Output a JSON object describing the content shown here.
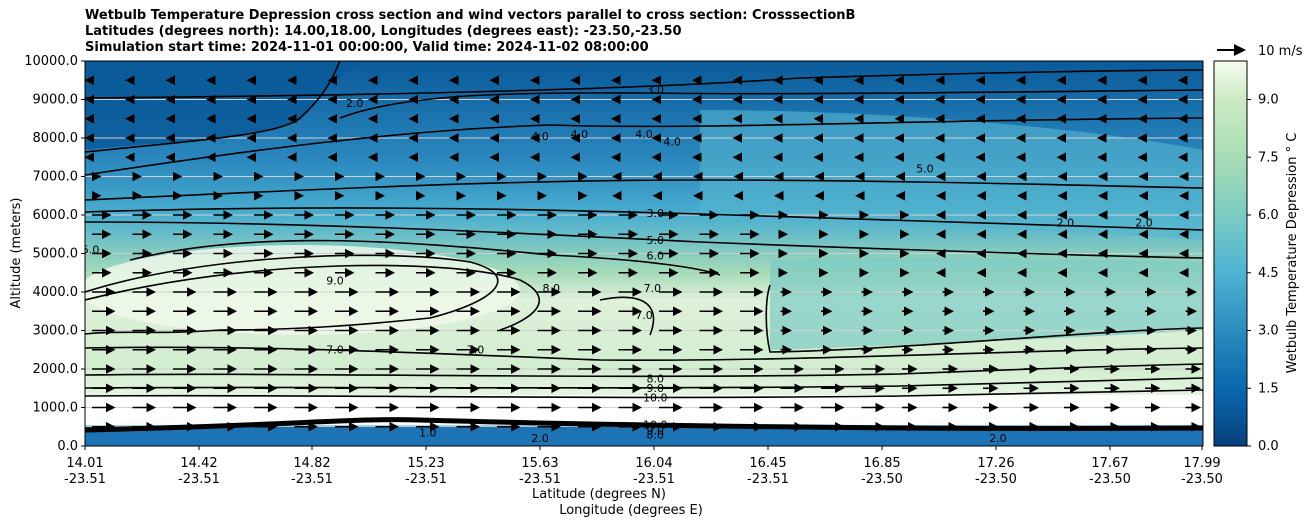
{
  "chart_data": {
    "type": "contour",
    "title_lines": [
      "Wetbulb Temperature Depression cross section and wind vectors parallel to cross section: CrosssectionB",
      "Latitudes (degrees north): 14.00,18.00, Longitudes (degrees east): -23.50,-23.50",
      "Simulation start time: 2024-11-01 00:00:00, Valid time: 2024-11-02 08:00:00"
    ],
    "ylabel": "Altitude (meters)",
    "xlabel_lat": "Latitude (degrees N)",
    "xlabel_lon": "Longitude (degrees E)",
    "ylim": [
      0,
      10000
    ],
    "y_ticks": [
      "0.0",
      "1000.0",
      "2000.0",
      "3000.0",
      "4000.0",
      "5000.0",
      "6000.0",
      "7000.0",
      "8000.0",
      "9000.0",
      "10000.0"
    ],
    "x_ticks": [
      {
        "lat": "14.01",
        "lon": "-23.51"
      },
      {
        "lat": "14.42",
        "lon": "-23.51"
      },
      {
        "lat": "14.82",
        "lon": "-23.51"
      },
      {
        "lat": "15.23",
        "lon": "-23.51"
      },
      {
        "lat": "15.63",
        "lon": "-23.51"
      },
      {
        "lat": "16.04",
        "lon": "-23.51"
      },
      {
        "lat": "16.45",
        "lon": "-23.51"
      },
      {
        "lat": "16.85",
        "lon": "-23.50"
      },
      {
        "lat": "17.26",
        "lon": "-23.50"
      },
      {
        "lat": "17.67",
        "lon": "-23.50"
      },
      {
        "lat": "17.99",
        "lon": "-23.50"
      }
    ],
    "colorbar": {
      "label": "Wetbulb Temperature Depression ° C",
      "min": 0,
      "max": 10,
      "ticks": [
        "0.0",
        "1.5",
        "3.0",
        "4.5",
        "6.0",
        "7.5",
        "9.0"
      ]
    },
    "quiver_key": {
      "label": "10 m/s"
    },
    "contour_labels": [
      {
        "text": "3.0",
        "lat": 16.04,
        "alt": 9150
      },
      {
        "text": "2.0",
        "lat": 14.97,
        "alt": 8800
      },
      {
        "text": "4.0",
        "lat": 15.63,
        "alt": 7950
      },
      {
        "text": "4.0",
        "lat": 15.77,
        "alt": 8000
      },
      {
        "text": "4.0",
        "lat": 16.0,
        "alt": 8000
      },
      {
        "text": "4.0",
        "lat": 16.1,
        "alt": 7800
      },
      {
        "text": "5.0",
        "lat": 17.0,
        "alt": 7100
      },
      {
        "text": "3.0",
        "lat": 16.04,
        "alt": 5950
      },
      {
        "text": "2.0",
        "lat": 17.5,
        "alt": 5700
      },
      {
        "text": "2.0",
        "lat": 17.78,
        "alt": 5700
      },
      {
        "text": "5.0",
        "lat": 16.04,
        "alt": 5250
      },
      {
        "text": "6.0",
        "lat": 16.04,
        "alt": 4850
      },
      {
        "text": "5.0",
        "lat": 14.03,
        "alt": 5000
      },
      {
        "text": "9.0",
        "lat": 14.9,
        "alt": 4200
      },
      {
        "text": "8.0",
        "lat": 15.67,
        "alt": 4000
      },
      {
        "text": "7.0",
        "lat": 16.03,
        "alt": 4000
      },
      {
        "text": "7.0",
        "lat": 16.0,
        "alt": 3300
      },
      {
        "text": "7.0",
        "lat": 14.9,
        "alt": 2400
      },
      {
        "text": "7.0",
        "lat": 15.4,
        "alt": 2400
      },
      {
        "text": "8.0",
        "lat": 16.04,
        "alt": 1650
      },
      {
        "text": "9.0",
        "lat": 16.04,
        "alt": 1400
      },
      {
        "text": "10.0",
        "lat": 16.04,
        "alt": 1150
      },
      {
        "text": "10.0",
        "lat": 16.04,
        "alt": 450
      },
      {
        "text": "9.0",
        "lat": 16.04,
        "alt": 300
      },
      {
        "text": "8.0",
        "lat": 16.04,
        "alt": 200
      },
      {
        "text": "1.0",
        "lat": 15.23,
        "alt": 250
      },
      {
        "text": "2.0",
        "lat": 15.63,
        "alt": 100
      },
      {
        "text": "2.0",
        "lat": 17.26,
        "alt": 100
      }
    ]
  }
}
